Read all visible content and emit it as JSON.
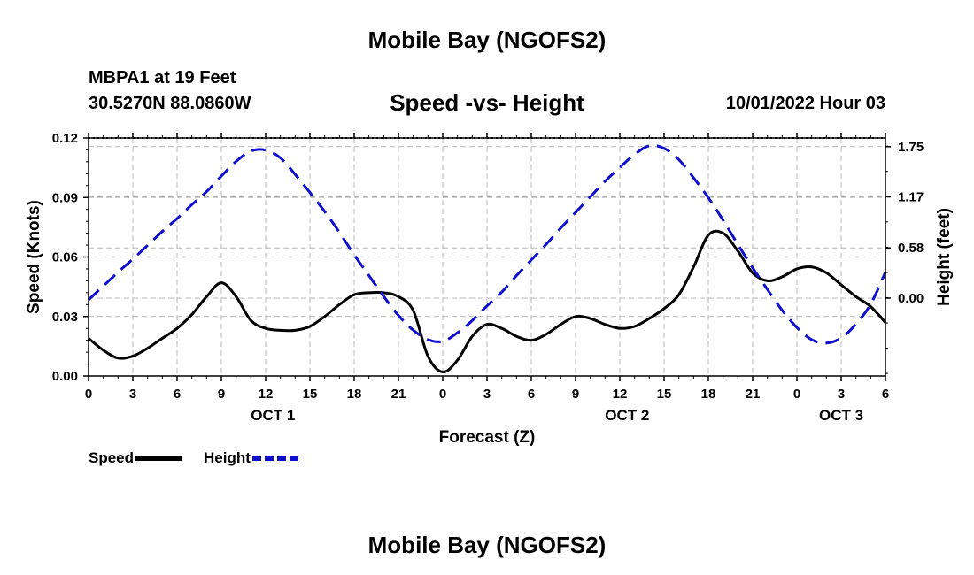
{
  "header": {
    "title": "Mobile Bay (NGOFS2)",
    "station": "MBPA1 at 19 Feet",
    "coords": "30.5270N  88.0860W",
    "subtitle": "Speed -vs- Height",
    "datetime": "10/01/2022 Hour 03"
  },
  "footer": {
    "title": "Mobile Bay (NGOFS2)"
  },
  "legend": [
    {
      "label": "Speed",
      "color": "#000000",
      "style": "solid"
    },
    {
      "label": "Height",
      "color": "#1010cc",
      "style": "dashed"
    }
  ],
  "chart_data": {
    "type": "line",
    "title": "Speed -vs- Height",
    "xlabel": "Forecast (Z)",
    "ylabel": "Speed (Knots)",
    "y2label": "Height (feet)",
    "xlim": [
      0,
      54
    ],
    "ylim": [
      0,
      0.12
    ],
    "y2lim": [
      -0.9,
      1.85
    ],
    "x_ticks": [
      0,
      3,
      6,
      9,
      12,
      15,
      18,
      21,
      24,
      27,
      30,
      33,
      36,
      39,
      42,
      45,
      48,
      51,
      54
    ],
    "x_tick_labels": [
      "0",
      "3",
      "6",
      "9",
      "12",
      "15",
      "18",
      "21",
      "0",
      "3",
      "6",
      "9",
      "12",
      "15",
      "18",
      "21",
      "0",
      "3",
      "6"
    ],
    "y_ticks": [
      0,
      0.03,
      0.06,
      0.09,
      0.12
    ],
    "y_tick_labels": [
      "0.00",
      "0.03",
      "0.06",
      "0.09",
      "0.12"
    ],
    "y2_ticks": [
      0,
      0.58,
      1.17,
      1.75
    ],
    "y2_tick_labels": [
      "0.00",
      "0.58",
      "1.17",
      "1.75"
    ],
    "date_labels": [
      {
        "x": 12.5,
        "label": "OCT 1"
      },
      {
        "x": 36.5,
        "label": "OCT 2"
      },
      {
        "x": 51,
        "label": "OCT 3"
      }
    ],
    "grid": true,
    "series": [
      {
        "name": "Speed",
        "axis": "left",
        "color": "#000000",
        "style": "solid",
        "x": [
          0,
          1,
          2,
          3,
          4,
          5,
          6,
          7,
          8,
          9,
          10,
          11,
          12,
          13,
          14,
          15,
          16,
          17,
          18,
          19,
          20,
          21,
          22,
          23,
          24,
          25,
          26,
          27,
          28,
          29,
          30,
          31,
          32,
          33,
          34,
          35,
          36,
          37,
          38,
          39,
          40,
          41,
          42,
          43,
          44,
          45,
          46,
          47,
          48,
          49,
          50,
          51,
          52,
          53,
          54
        ],
        "values": [
          0.019,
          0.013,
          0.009,
          0.01,
          0.014,
          0.019,
          0.024,
          0.031,
          0.04,
          0.047,
          0.04,
          0.028,
          0.024,
          0.023,
          0.023,
          0.025,
          0.03,
          0.036,
          0.041,
          0.042,
          0.042,
          0.04,
          0.033,
          0.01,
          0.002,
          0.008,
          0.02,
          0.026,
          0.024,
          0.02,
          0.018,
          0.021,
          0.026,
          0.03,
          0.029,
          0.026,
          0.024,
          0.025,
          0.029,
          0.034,
          0.041,
          0.055,
          0.071,
          0.072,
          0.063,
          0.052,
          0.048,
          0.05,
          0.054,
          0.055,
          0.052,
          0.046,
          0.04,
          0.035,
          0.027
        ]
      },
      {
        "name": "Height",
        "axis": "right",
        "color": "#1010cc",
        "style": "dashed",
        "x": [
          0,
          1,
          2,
          3,
          4,
          5,
          6,
          7,
          8,
          9,
          10,
          11,
          12,
          13,
          14,
          15,
          16,
          17,
          18,
          19,
          20,
          21,
          22,
          23,
          24,
          25,
          26,
          27,
          28,
          29,
          30,
          31,
          32,
          33,
          34,
          35,
          36,
          37,
          38,
          39,
          40,
          41,
          42,
          43,
          44,
          45,
          46,
          47,
          48,
          49,
          50,
          51,
          52,
          53,
          54
        ],
        "values": [
          -0.02,
          0.14,
          0.3,
          0.45,
          0.61,
          0.77,
          0.92,
          1.08,
          1.23,
          1.41,
          1.58,
          1.7,
          1.71,
          1.62,
          1.43,
          1.22,
          1.0,
          0.76,
          0.5,
          0.26,
          0.02,
          -0.2,
          -0.37,
          -0.48,
          -0.5,
          -0.4,
          -0.26,
          -0.09,
          0.07,
          0.26,
          0.44,
          0.62,
          0.81,
          0.99,
          1.17,
          1.35,
          1.51,
          1.66,
          1.76,
          1.73,
          1.6,
          1.39,
          1.16,
          0.9,
          0.62,
          0.35,
          0.1,
          -0.14,
          -0.34,
          -0.48,
          -0.52,
          -0.46,
          -0.3,
          -0.07,
          0.3
        ]
      }
    ]
  }
}
